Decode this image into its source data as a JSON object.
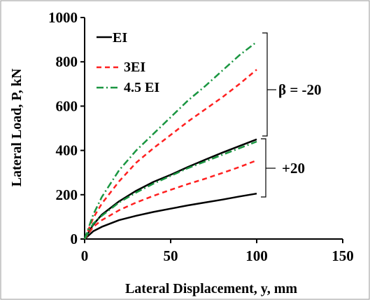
{
  "chart_data": {
    "type": "line",
    "xlabel": "Lateral Displacement, y, mm",
    "ylabel": "Lateral Load, P, kN",
    "xlim": [
      0,
      150
    ],
    "ylim": [
      0,
      1000
    ],
    "xticks": [
      0,
      50,
      100,
      150
    ],
    "yticks": [
      0,
      200,
      400,
      600,
      800,
      1000
    ],
    "grid": false,
    "legend_position": "top-left",
    "legend": [
      {
        "label": "EI",
        "color": "#000000",
        "style": "solid"
      },
      {
        "label": "3EI",
        "color": "#ff2020",
        "style": "dashed"
      },
      {
        "label": "4.5 EI",
        "color": "#1a9641",
        "style": "dashdot"
      }
    ],
    "annotations": [
      {
        "text": "β = -20",
        "group": "upper"
      },
      {
        "text": "+20",
        "group": "lower"
      }
    ],
    "series": [
      {
        "stiffness": "EI",
        "beta": "-20",
        "color": "#000000",
        "style": "solid",
        "x": [
          0,
          5,
          10,
          20,
          30,
          40,
          50,
          60,
          70,
          80,
          90,
          100
        ],
        "y": [
          0,
          65,
          110,
          170,
          218,
          258,
          290,
          325,
          358,
          390,
          420,
          450
        ]
      },
      {
        "stiffness": "3EI",
        "beta": "-20",
        "color": "#ff2020",
        "style": "dashed",
        "x": [
          0,
          5,
          10,
          20,
          30,
          40,
          50,
          60,
          70,
          80,
          90,
          100
        ],
        "y": [
          0,
          95,
          160,
          260,
          345,
          410,
          470,
          530,
          585,
          640,
          700,
          765
        ]
      },
      {
        "stiffness": "4.5 EI",
        "beta": "-20",
        "color": "#1a9641",
        "style": "dashdot",
        "x": [
          0,
          5,
          10,
          20,
          30,
          40,
          50,
          60,
          70,
          80,
          90,
          100
        ],
        "y": [
          0,
          110,
          190,
          310,
          400,
          475,
          550,
          625,
          690,
          760,
          830,
          890
        ]
      },
      {
        "stiffness": "EI",
        "beta": "+20",
        "color": "#000000",
        "style": "solid",
        "x": [
          0,
          5,
          10,
          20,
          30,
          40,
          50,
          60,
          70,
          80,
          90,
          100
        ],
        "y": [
          0,
          35,
          55,
          85,
          105,
          122,
          137,
          152,
          165,
          178,
          192,
          205
        ]
      },
      {
        "stiffness": "3EI",
        "beta": "+20",
        "color": "#ff2020",
        "style": "dashed",
        "x": [
          0,
          5,
          10,
          20,
          30,
          40,
          50,
          60,
          70,
          80,
          90,
          100
        ],
        "y": [
          0,
          55,
          85,
          130,
          165,
          195,
          222,
          248,
          272,
          298,
          325,
          355
        ]
      },
      {
        "stiffness": "4.5 EI",
        "beta": "+20",
        "color": "#1a9641",
        "style": "dashdot",
        "x": [
          0,
          5,
          10,
          20,
          30,
          40,
          50,
          60,
          70,
          80,
          90,
          100
        ],
        "y": [
          0,
          70,
          105,
          165,
          210,
          250,
          285,
          320,
          350,
          380,
          410,
          440
        ]
      }
    ]
  }
}
